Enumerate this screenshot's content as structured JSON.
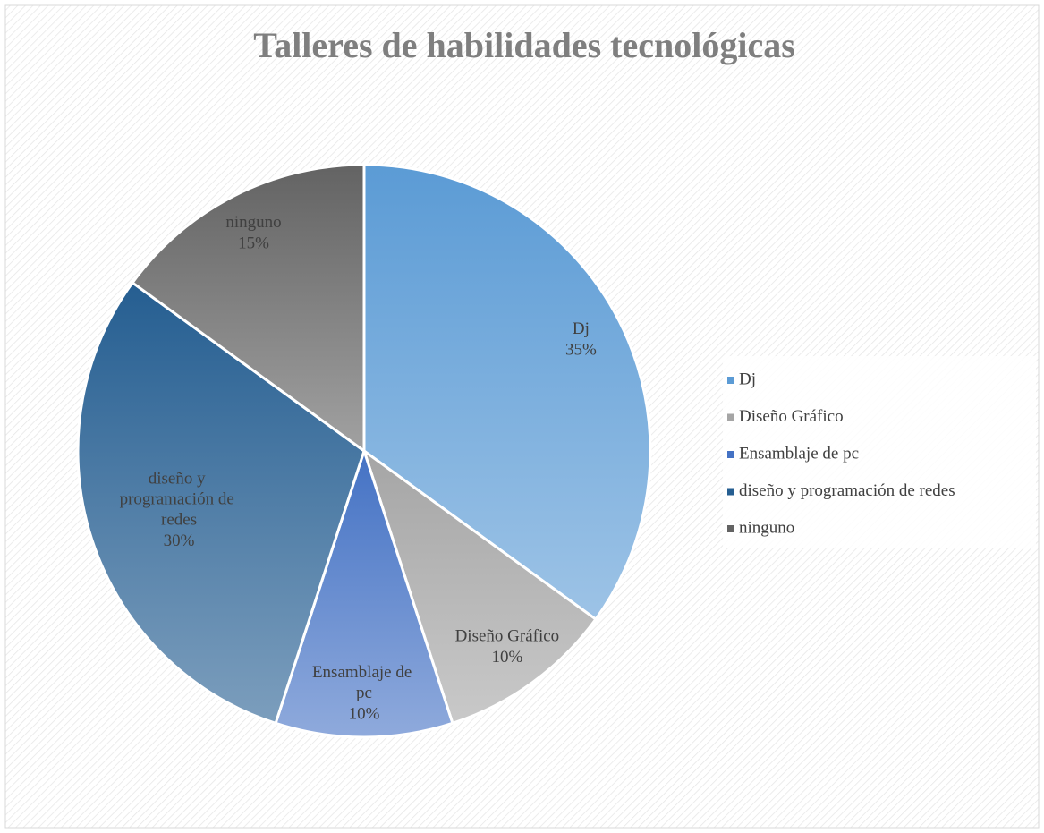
{
  "chart_data": {
    "type": "pie",
    "title": "Talleres de habilidades tecnológicas",
    "categories": [
      "Dj",
      "Diseño Gráfico",
      "Ensamblaje de pc",
      "diseño y programación de redes",
      "ninguno"
    ],
    "values": [
      35,
      10,
      10,
      30,
      15
    ],
    "value_labels": [
      "35%",
      "10%",
      "10%",
      "30%",
      "15%"
    ],
    "colors": [
      "#5b9bd5",
      "#a5a5a5",
      "#4472c4",
      "#255e91",
      "#636363"
    ],
    "legend": "right"
  }
}
